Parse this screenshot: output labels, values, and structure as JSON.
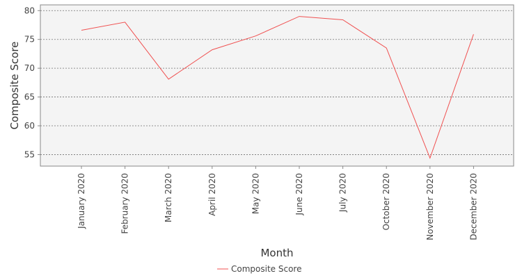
{
  "chart_data": {
    "type": "line",
    "title": "",
    "xlabel": "Month",
    "ylabel": "Composite Score",
    "categories": [
      "January 2020",
      "February 2020",
      "March 2020",
      "April 2020",
      "May 2020",
      "June 2020",
      "July 2020",
      "October 2020",
      "November 2020",
      "December 2020"
    ],
    "series": [
      {
        "name": "Composite Score",
        "color": "#f05050",
        "values": [
          76.6,
          78.0,
          68.1,
          73.2,
          75.6,
          79.0,
          78.4,
          73.5,
          54.4,
          75.9
        ]
      }
    ],
    "ylim": [
      53,
      81
    ],
    "yticks": [
      55,
      60,
      65,
      70,
      75,
      80
    ],
    "grid": true,
    "legend_position": "bottom-center",
    "plot_background": "#f4f4f4",
    "grid_color": "#707070"
  }
}
